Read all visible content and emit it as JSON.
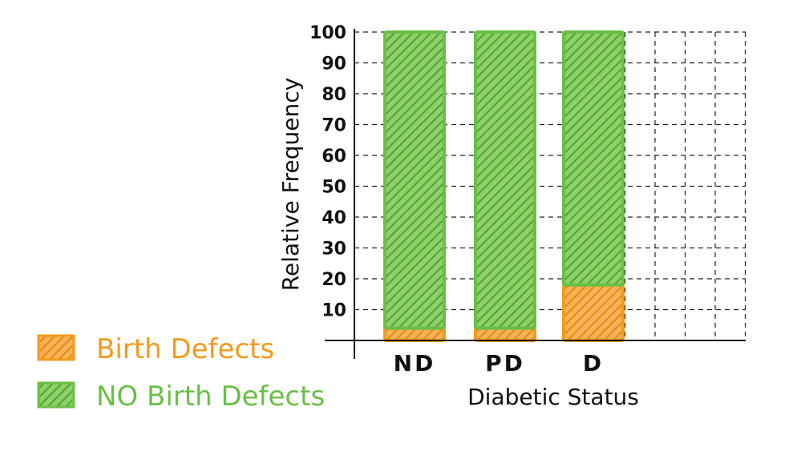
{
  "chart_data": {
    "type": "bar",
    "stacked": true,
    "categories": [
      "ND",
      "PD",
      "D"
    ],
    "series": [
      {
        "name": "Birth Defects",
        "values": [
          4,
          4,
          18
        ],
        "color": "#f39a1d"
      },
      {
        "name": "NO Birth Defects",
        "values": [
          96,
          96,
          82
        ],
        "color": "#6abf45"
      }
    ],
    "xlabel": "Diabetic Status",
    "ylabel": "Relative Frequency",
    "ylim": [
      0,
      100
    ],
    "yticks": [
      10,
      20,
      30,
      40,
      50,
      60,
      70,
      80,
      90,
      100
    ],
    "grid": true,
    "legend_position": "bottom-left"
  }
}
